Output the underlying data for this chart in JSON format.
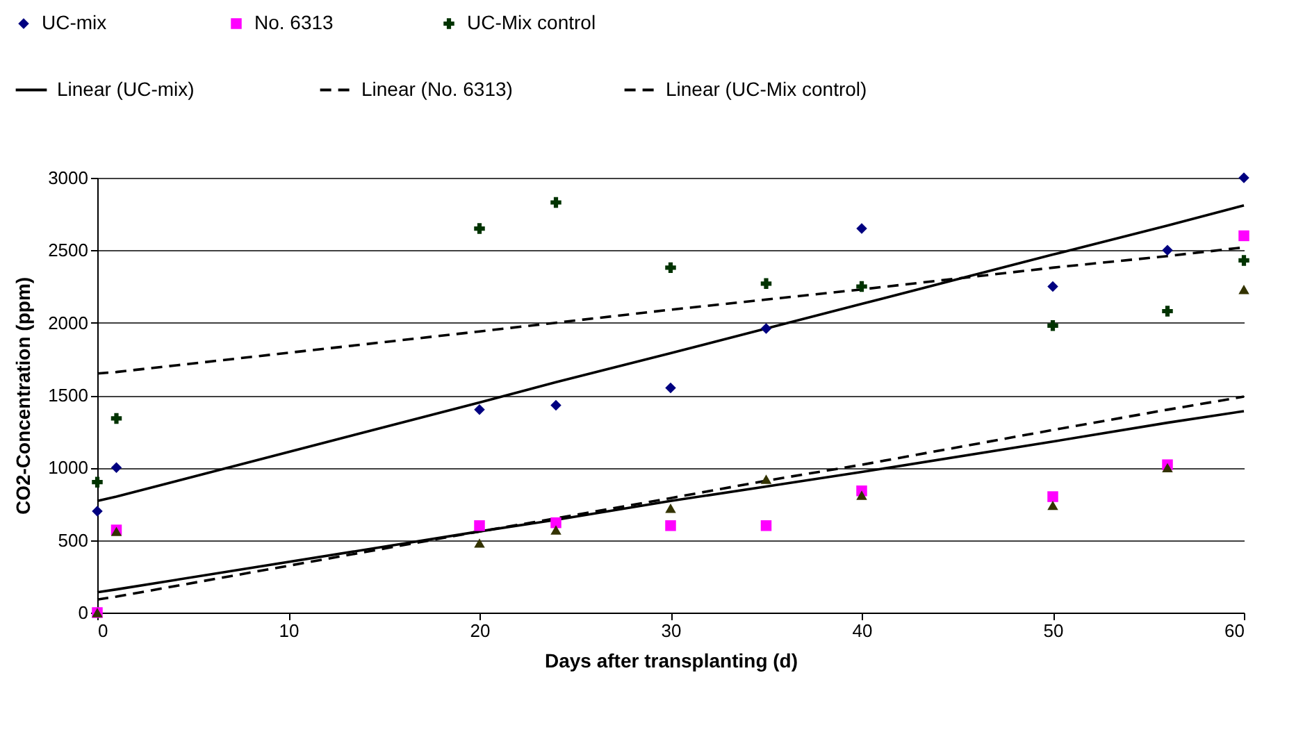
{
  "chart_data": {
    "type": "scatter",
    "xlabel": "Days after transplanting (d)",
    "ylabel": "CO2-Concentration (ppm)",
    "xlim": [
      0,
      60
    ],
    "ylim": [
      0,
      3000
    ],
    "xticks": [
      0,
      10,
      20,
      30,
      40,
      50,
      60
    ],
    "yticks": [
      0,
      500,
      1000,
      1500,
      2000,
      2500,
      3000
    ],
    "grid": "y",
    "legend": "top",
    "x": [
      0,
      1,
      20,
      24,
      30,
      35,
      40,
      50,
      56,
      60
    ],
    "series": [
      {
        "name": "UC-mix",
        "marker": "diamond",
        "color": "#000080",
        "values": [
          700,
          1000,
          1400,
          1430,
          1550,
          1960,
          2650,
          2250,
          2500,
          3000
        ]
      },
      {
        "name": "No. 6313",
        "marker": "square",
        "color": "#ff00ff",
        "values": [
          0,
          570,
          600,
          620,
          600,
          600,
          840,
          800,
          1020,
          2600
        ]
      },
      {
        "marker": "triangle",
        "color": "#333300",
        "values": [
          0,
          560,
          480,
          570,
          720,
          920,
          810,
          740,
          1000,
          2230
        ]
      },
      {
        "name": "UC-Mix control",
        "marker": "cross",
        "color": "#003300",
        "values": [
          900,
          1340,
          2650,
          2830,
          2380,
          2270,
          2250,
          1980,
          2080,
          2430
        ]
      },
      {
        "name": "Linear (UC-mix)",
        "type": "line",
        "line_style": "solid",
        "color": "#000000",
        "values": [
          770,
          800,
          1450,
          1590,
          1790,
          1960,
          2130,
          2470,
          2670,
          2810
        ]
      },
      {
        "name": "Linear (No. 6313)",
        "type": "line",
        "line_style": "dashed",
        "color": "#000000",
        "values": [
          90,
          110,
          560,
          650,
          790,
          910,
          1020,
          1260,
          1400,
          1490
        ]
      },
      {
        "type": "line",
        "line_style": "solid",
        "color": "#000000",
        "values": [
          140,
          160,
          560,
          640,
          770,
          870,
          970,
          1180,
          1310,
          1390
        ]
      },
      {
        "name": "Linear (UC-Mix control)",
        "type": "line",
        "line_style": "dashed",
        "color": "#000000",
        "values": [
          1650,
          1660,
          1940,
          2000,
          2090,
          2160,
          2230,
          2380,
          2460,
          2520
        ]
      }
    ]
  }
}
